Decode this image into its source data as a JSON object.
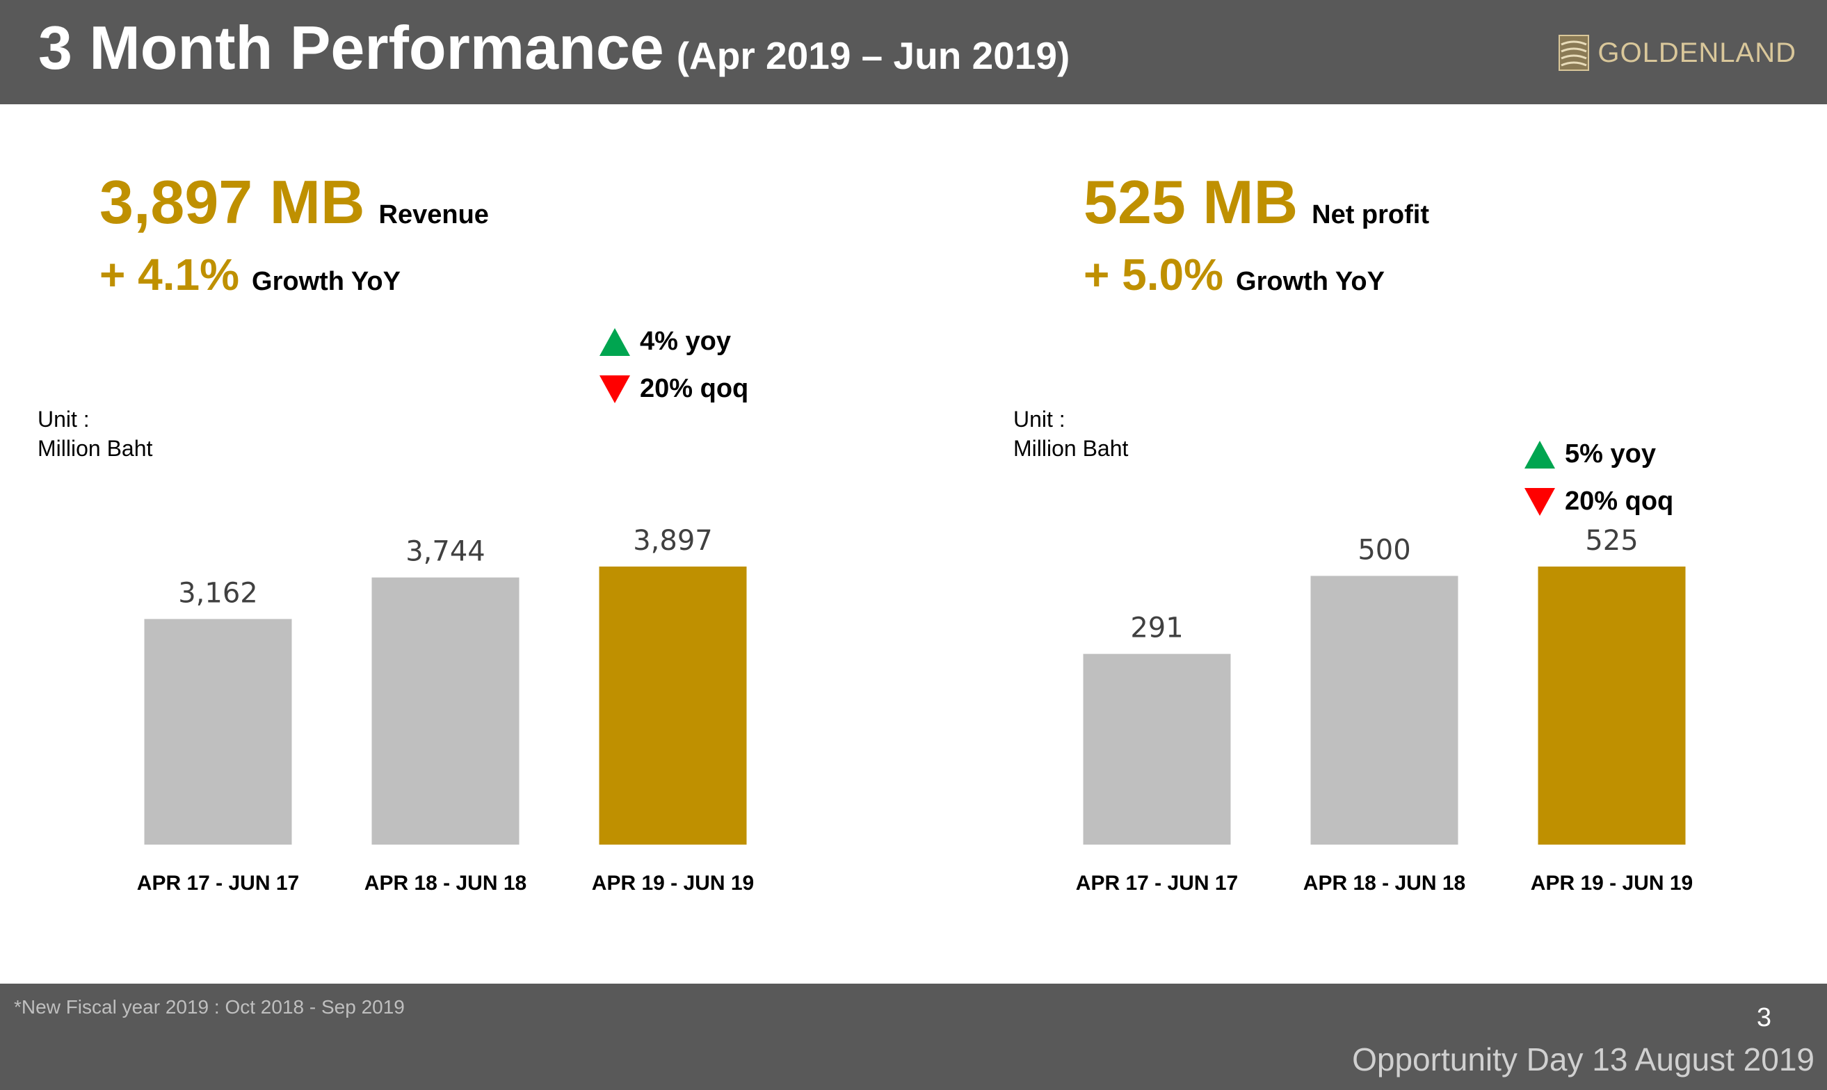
{
  "header": {
    "title": "3 Month Performance",
    "subtitle": "(Apr 2019 – Jun 2019)",
    "logo_text": "GOLDENLAND"
  },
  "revenue": {
    "value_text": "3,897 MB",
    "label": "Revenue",
    "growth": "+ 4.1%",
    "growth_label": "Growth YoY",
    "yoy": "4% yoy",
    "qoq": "20% qoq",
    "unit_line1": "Unit :",
    "unit_line2": "Million Baht"
  },
  "profit": {
    "value_text": "525 MB",
    "label": "Net profit",
    "growth": "+ 5.0%",
    "growth_label": "Growth YoY",
    "yoy": "5% yoy",
    "qoq": "20% qoq",
    "unit_line1": "Unit :",
    "unit_line2": "Million Baht"
  },
  "footer": {
    "note": "*New Fiscal year 2019 : Oct 2018 - Sep 2019",
    "page": "3",
    "event": "Opportunity Day 13 August 2019"
  },
  "colors": {
    "accent": "#bf9000",
    "bar_gray": "#bfbfbf",
    "up": "#00a550",
    "down": "#ff0000",
    "header_bg": "#595959"
  },
  "chart_data": [
    {
      "type": "bar",
      "categories": [
        "APR 17 - JUN 17",
        "APR 18 - JUN 18",
        "APR 19 - JUN 19"
      ],
      "values": [
        3162,
        3744,
        3897
      ],
      "value_labels": [
        "3,162",
        "3,744",
        "3,897"
      ],
      "highlight_index": 2,
      "ylim": [
        0,
        3897
      ]
    },
    {
      "type": "bar",
      "categories": [
        "APR 17 - JUN 17",
        "APR 18 - JUN 18",
        "APR 19 - JUN 19"
      ],
      "values": [
        291,
        500,
        525
      ],
      "value_labels": [
        "291",
        "500",
        "525"
      ],
      "highlight_index": 2,
      "ylim": [
        -220,
        525
      ]
    }
  ]
}
